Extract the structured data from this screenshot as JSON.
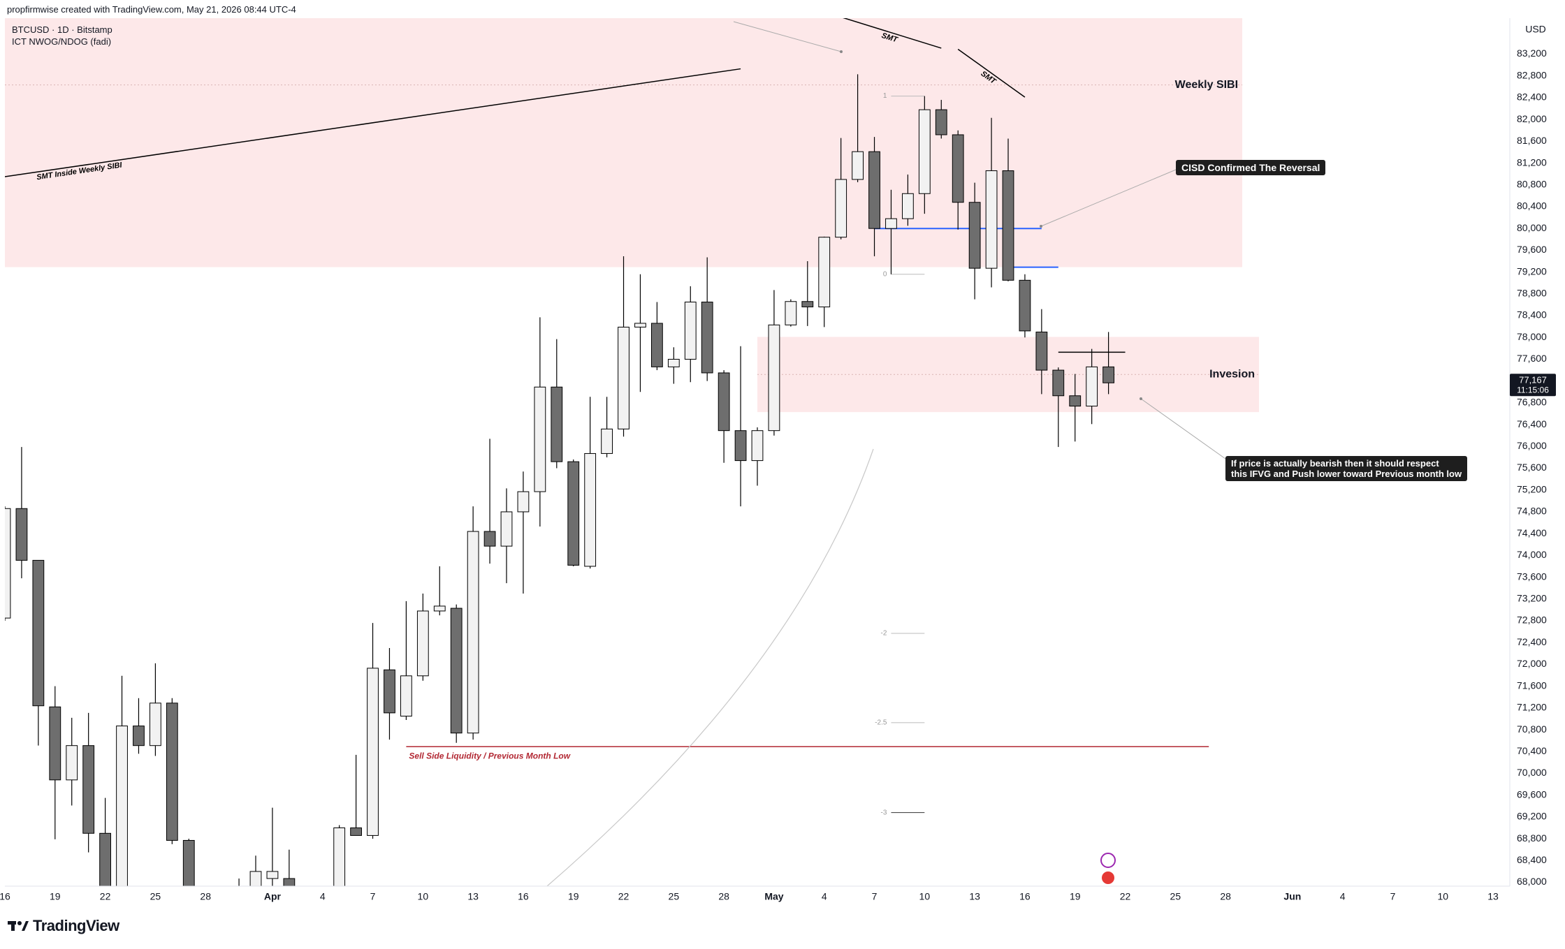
{
  "header": "propfirmwise created with TradingView.com, May 21, 2026 08:44 UTC-4",
  "symbol_line": "BTCUSD · 1D · Bitstamp",
  "indicator": "ICT NWOG/NDOG (fadi)",
  "brand": "TradingView",
  "chart_data": {
    "type": "candlestick",
    "currency": "USD",
    "up_color": "#f2f2f2",
    "down_color": "#6e6e6e",
    "x": [
      "2026-03-16",
      "2026-03-17",
      "2026-03-18",
      "2026-03-19",
      "2026-03-20",
      "2026-03-21",
      "2026-03-22",
      "2026-03-23",
      "2026-03-24",
      "2026-03-25",
      "2026-03-26",
      "2026-03-27",
      "2026-03-30",
      "2026-03-31",
      "2026-04-01",
      "2026-04-02",
      "2026-04-05",
      "2026-04-06",
      "2026-04-07",
      "2026-04-08",
      "2026-04-09",
      "2026-04-10",
      "2026-04-11",
      "2026-04-12",
      "2026-04-13",
      "2026-04-14",
      "2026-04-15",
      "2026-04-16",
      "2026-04-17",
      "2026-04-18",
      "2026-04-19",
      "2026-04-20",
      "2026-04-21",
      "2026-04-22",
      "2026-04-23",
      "2026-04-24",
      "2026-04-25",
      "2026-04-26",
      "2026-04-27",
      "2026-04-28",
      "2026-04-29",
      "2026-04-30",
      "2026-05-01",
      "2026-05-02",
      "2026-05-03",
      "2026-05-04",
      "2026-05-05",
      "2026-05-06",
      "2026-05-07",
      "2026-05-08",
      "2026-05-09",
      "2026-05-10",
      "2026-05-11",
      "2026-05-12",
      "2026-05-13",
      "2026-05-14",
      "2026-05-15",
      "2026-05-16",
      "2026-05-17",
      "2026-05-18",
      "2026-05-19",
      "2026-05-20",
      "2026-05-21"
    ],
    "open": [
      72850,
      74860,
      73910,
      71220,
      69880,
      70510,
      68900,
      67800,
      70870,
      70510,
      71290,
      68770,
      67800,
      67900,
      68070,
      68070,
      67900,
      69000,
      68860,
      71900,
      71050,
      71790,
      72980,
      73030,
      70740,
      74440,
      74170,
      74800,
      75170,
      77090,
      75720,
      73800,
      75870,
      76320,
      78190,
      78260,
      77460,
      77600,
      78650,
      77350,
      76290,
      75740,
      76290,
      78230,
      78660,
      78560,
      79840,
      80900,
      81410,
      80000,
      80180,
      80640,
      82180,
      81720,
      80480,
      79270,
      81060,
      79050,
      78100,
      77400,
      76930,
      76740,
      77460
    ],
    "high": [
      74900,
      75990,
      73910,
      71600,
      71020,
      71110,
      69550,
      71790,
      71380,
      72020,
      71380,
      68800,
      68070,
      68490,
      69370,
      68600,
      69050,
      70340,
      72760,
      72300,
      73160,
      73300,
      73800,
      73100,
      74900,
      76140,
      75230,
      75540,
      78370,
      77970,
      75760,
      76910,
      76910,
      79490,
      79160,
      78650,
      77820,
      78940,
      79470,
      77400,
      77840,
      76350,
      78870,
      78700,
      79400,
      79850,
      81660,
      82830,
      81680,
      80710,
      80990,
      82430,
      82360,
      81800,
      80840,
      82030,
      81650,
      79160,
      78520,
      77450,
      77330,
      77790,
      78100
    ],
    "low": [
      72800,
      73580,
      70510,
      68790,
      69410,
      68550,
      67800,
      67500,
      70360,
      70320,
      68700,
      67600,
      67400,
      67700,
      67900,
      67600,
      67700,
      68860,
      68800,
      70620,
      70980,
      71700,
      72900,
      70560,
      70620,
      73850,
      73490,
      73300,
      74530,
      75600,
      73800,
      73760,
      75800,
      76180,
      77000,
      77400,
      77150,
      77180,
      77200,
      75700,
      74900,
      75280,
      76200,
      78200,
      78210,
      78190,
      79800,
      80850,
      79490,
      79160,
      80050,
      80270,
      81650,
      79980,
      78700,
      78920,
      79030,
      78000,
      76960,
      75990,
      76090,
      76410,
      76960
    ],
    "close": [
      74860,
      73910,
      71240,
      69880,
      70510,
      68900,
      67900,
      70870,
      70510,
      71290,
      68770,
      67700,
      67600,
      68200,
      68200,
      67930,
      69000,
      68860,
      71930,
      71110,
      71790,
      72980,
      73070,
      70740,
      74440,
      74170,
      74800,
      75170,
      77090,
      75720,
      73820,
      75870,
      76320,
      78190,
      78260,
      77460,
      77600,
      78650,
      77350,
      76290,
      75740,
      76290,
      78230,
      78660,
      78560,
      79840,
      80900,
      81410,
      80000,
      80180,
      80640,
      82180,
      81720,
      80480,
      79270,
      81060,
      79050,
      78120,
      77400,
      76930,
      76740,
      77460,
      77167
    ],
    "xlim": [
      "2026-03-16",
      "2026-06-14"
    ],
    "ylim": [
      67930,
      83860
    ],
    "xticks": [
      {
        "value": "2026-03-16",
        "label": "16"
      },
      {
        "value": "2026-03-19",
        "label": "19"
      },
      {
        "value": "2026-03-22",
        "label": "22"
      },
      {
        "value": "2026-03-25",
        "label": "25"
      },
      {
        "value": "2026-03-28",
        "label": "28"
      },
      {
        "value": "2026-04-01",
        "label": "Apr"
      },
      {
        "value": "2026-04-04",
        "label": "4"
      },
      {
        "value": "2026-04-07",
        "label": "7"
      },
      {
        "value": "2026-04-10",
        "label": "10"
      },
      {
        "value": "2026-04-13",
        "label": "13"
      },
      {
        "value": "2026-04-16",
        "label": "16"
      },
      {
        "value": "2026-04-19",
        "label": "19"
      },
      {
        "value": "2026-04-22",
        "label": "22"
      },
      {
        "value": "2026-04-25",
        "label": "25"
      },
      {
        "value": "2026-04-28",
        "label": "28"
      },
      {
        "value": "2026-05-01",
        "label": "May"
      },
      {
        "value": "2026-05-04",
        "label": "4"
      },
      {
        "value": "2026-05-07",
        "label": "7"
      },
      {
        "value": "2026-05-10",
        "label": "10"
      },
      {
        "value": "2026-05-13",
        "label": "13"
      },
      {
        "value": "2026-05-16",
        "label": "16"
      },
      {
        "value": "2026-05-19",
        "label": "19"
      },
      {
        "value": "2026-05-22",
        "label": "22"
      },
      {
        "value": "2026-05-25",
        "label": "25"
      },
      {
        "value": "2026-05-28",
        "label": "28"
      },
      {
        "value": "2026-06-01",
        "label": "Jun"
      },
      {
        "value": "2026-06-04",
        "label": "4"
      },
      {
        "value": "2026-06-07",
        "label": "7"
      },
      {
        "value": "2026-06-10",
        "label": "10"
      },
      {
        "value": "2026-06-13",
        "label": "13"
      }
    ],
    "yticks": [
      {
        "value": 68000,
        "label": "68,000"
      },
      {
        "value": 68400,
        "label": "68,400"
      },
      {
        "value": 68800,
        "label": "68,800"
      },
      {
        "value": 69200,
        "label": "69,200"
      },
      {
        "value": 69600,
        "label": "69,600"
      },
      {
        "value": 70000,
        "label": "70,000"
      },
      {
        "value": 70400,
        "label": "70,400"
      },
      {
        "value": 70800,
        "label": "70,800"
      },
      {
        "value": 71200,
        "label": "71,200"
      },
      {
        "value": 71600,
        "label": "71,600"
      },
      {
        "value": 72000,
        "label": "72,000"
      },
      {
        "value": 72400,
        "label": "72,400"
      },
      {
        "value": 72800,
        "label": "72,800"
      },
      {
        "value": 73200,
        "label": "73,200"
      },
      {
        "value": 73600,
        "label": "73,600"
      },
      {
        "value": 74000,
        "label": "74,000"
      },
      {
        "value": 74400,
        "label": "74,400"
      },
      {
        "value": 74800,
        "label": "74,800"
      },
      {
        "value": 75200,
        "label": "75,200"
      },
      {
        "value": 75600,
        "label": "75,600"
      },
      {
        "value": 76000,
        "label": "76,000"
      },
      {
        "value": 76400,
        "label": "76,400"
      },
      {
        "value": 76800,
        "label": "76,800"
      },
      {
        "value": 77200,
        "label": "77,200"
      },
      {
        "value": 77600,
        "label": "77,600"
      },
      {
        "value": 78000,
        "label": "78,000"
      },
      {
        "value": 78400,
        "label": "78,400"
      },
      {
        "value": 78800,
        "label": "78,800"
      },
      {
        "value": 79200,
        "label": "79,200"
      },
      {
        "value": 79600,
        "label": "79,600"
      },
      {
        "value": 80000,
        "label": "80,000"
      },
      {
        "value": 80400,
        "label": "80,400"
      },
      {
        "value": 80800,
        "label": "80,800"
      },
      {
        "value": 81200,
        "label": "81,200"
      },
      {
        "value": 81600,
        "label": "81,600"
      },
      {
        "value": 82000,
        "label": "82,000"
      },
      {
        "value": 82400,
        "label": "82,400"
      },
      {
        "value": 82800,
        "label": "82,800"
      },
      {
        "value": 83200,
        "label": "83,200"
      }
    ],
    "grid": false,
    "last_price": {
      "value": 77167,
      "label": "77,167"
    },
    "countdown": "11:15:06",
    "zones": [
      {
        "label": "Weekly SIBI",
        "x": [
          "2026-03-16",
          "2026-05-29"
        ],
        "y": [
          79290,
          85980
        ],
        "color": "#fde8e9"
      },
      {
        "label": "Invesion",
        "x": [
          "2026-04-30",
          "2026-05-30"
        ],
        "y": [
          76630,
          78010
        ],
        "color": "#fde8e9"
      }
    ],
    "lines": [
      {
        "label": "SMT Inside Weekly SIBI",
        "x": [
          "2026-03-16",
          "2026-04-29"
        ],
        "y": [
          80950,
          82930
        ],
        "color": "#000000"
      },
      {
        "label": "SMT",
        "x": [
          "2026-05-05",
          "2026-05-11"
        ],
        "y": [
          83880,
          83310
        ],
        "color": "#000000"
      },
      {
        "label": "SMT",
        "x": [
          "2026-05-12",
          "2026-05-16"
        ],
        "y": [
          83290,
          82410
        ],
        "color": "#000000"
      },
      {
        "label": "Sell Side Liquidity / Previous Month Low",
        "x": [
          "2026-04-09",
          "2026-05-27"
        ],
        "y": [
          70490,
          70490
        ],
        "color": "#b22833"
      },
      {
        "x": [
          "2026-05-07",
          "2026-05-17"
        ],
        "y": [
          80000,
          80000
        ],
        "color": "#2962ff"
      },
      {
        "x": [
          "2026-05-15",
          "2026-05-18"
        ],
        "y": [
          79290,
          79290
        ],
        "color": "#2962ff"
      },
      {
        "x": [
          "2026-05-18",
          "2026-05-22"
        ],
        "y": [
          77730,
          77730
        ],
        "color": "#000000"
      }
    ],
    "fib_x": [
      "2026-05-08",
      "2026-05-10"
    ],
    "fib": [
      {
        "value": 82430,
        "label": "1"
      },
      {
        "value": 79160,
        "label": "0"
      },
      {
        "value": 72570,
        "label": "-2"
      },
      {
        "value": 70930,
        "label": "-2.5"
      },
      {
        "value": 69280,
        "label": "-3"
      }
    ],
    "callouts": [
      {
        "lines": [
          "CISD Confirmed The Reversal"
        ]
      },
      {
        "lines": [
          "If price is actually bearish then it should respect",
          "this IFVG and Push lower toward Previous month low"
        ]
      }
    ]
  }
}
